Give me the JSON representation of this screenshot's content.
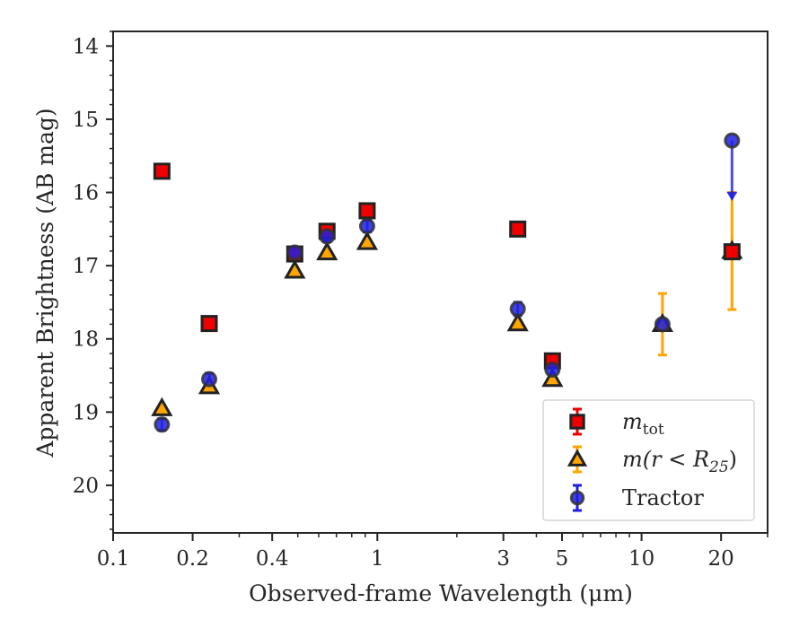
{
  "chart_data": {
    "type": "scatter",
    "title": "",
    "xlabel": "Observed-frame Wavelength (μm)",
    "ylabel": "Apparent Brightness (AB mag)",
    "xscale": "log",
    "xlim": [
      0.1,
      30
    ],
    "ylim": [
      20.65,
      13.8
    ],
    "y_inverted": true,
    "grid": false,
    "legend_position": "lower right",
    "x_ticks": [
      {
        "value": 0.1,
        "label": "0.1"
      },
      {
        "value": 0.2,
        "label": "0.2"
      },
      {
        "value": 0.4,
        "label": "0.4"
      },
      {
        "value": 1,
        "label": "1"
      },
      {
        "value": 3,
        "label": "3"
      },
      {
        "value": 5,
        "label": "5"
      },
      {
        "value": 10,
        "label": "10"
      },
      {
        "value": 20,
        "label": "20"
      }
    ],
    "y_ticks": [
      {
        "value": 14,
        "label": "14"
      },
      {
        "value": 15,
        "label": "15"
      },
      {
        "value": 16,
        "label": "16"
      },
      {
        "value": 17,
        "label": "17"
      },
      {
        "value": 18,
        "label": "18"
      },
      {
        "value": 19,
        "label": "19"
      },
      {
        "value": 20,
        "label": "20"
      }
    ],
    "series": [
      {
        "name": "Tractor",
        "marker": "circle",
        "color": "#1f1fe0",
        "edge_color": "#333333",
        "points": [
          {
            "x": 0.153,
            "y": 19.17,
            "err": 0.08
          },
          {
            "x": 0.231,
            "y": 18.55,
            "err": 0.08
          },
          {
            "x": 0.487,
            "y": 16.82,
            "err": 0.07
          },
          {
            "x": 0.645,
            "y": 16.6,
            "err": 0.07
          },
          {
            "x": 0.915,
            "y": 16.46,
            "err": 0.08
          },
          {
            "x": 3.4,
            "y": 17.59,
            "err": 0.09
          },
          {
            "x": 4.6,
            "y": 18.42,
            "err": 0.1
          },
          {
            "x": 12.0,
            "y": 17.8,
            "err": 0.05
          },
          {
            "x": 22.0,
            "y": 15.29,
            "err_down": 0.8,
            "upper_limit": true
          }
        ]
      },
      {
        "name": "m(r < R25)",
        "marker": "triangle",
        "color": "#ffa500",
        "edge_color": "#222222",
        "points": [
          {
            "x": 0.153,
            "y": 18.95,
            "err": 0.03
          },
          {
            "x": 0.231,
            "y": 18.65,
            "err": 0.03
          },
          {
            "x": 0.487,
            "y": 17.07,
            "err": 0.03
          },
          {
            "x": 0.645,
            "y": 16.82,
            "err": 0.03
          },
          {
            "x": 0.915,
            "y": 16.68,
            "err": 0.03
          },
          {
            "x": 3.4,
            "y": 17.79,
            "err": 0.03
          },
          {
            "x": 4.6,
            "y": 18.55,
            "err": 0.04
          },
          {
            "x": 12.0,
            "y": 17.8,
            "err": 0.42
          },
          {
            "x": 22.0,
            "y": 16.8,
            "err": 0.8
          }
        ]
      },
      {
        "name": "m_tot",
        "marker": "square",
        "color": "#ee0000",
        "edge_color": "#222222",
        "points": [
          {
            "x": 0.153,
            "y": 15.71,
            "err": 0.03
          },
          {
            "x": 0.231,
            "y": 17.79,
            "err": 0.03
          },
          {
            "x": 0.487,
            "y": 16.84,
            "err": 0.05
          },
          {
            "x": 0.645,
            "y": 16.53,
            "err": 0.05
          },
          {
            "x": 0.915,
            "y": 16.25,
            "err": 0.06
          },
          {
            "x": 3.4,
            "y": 16.5,
            "err": 0.04
          },
          {
            "x": 4.6,
            "y": 18.3,
            "err": 0.05
          },
          {
            "x": 22.0,
            "y": 16.81,
            "err": 0.03
          }
        ]
      }
    ],
    "legend": {
      "entries": [
        {
          "series": "m_tot",
          "marker": "square",
          "label_main": "m",
          "label_sub": "tot"
        },
        {
          "series": "m(r < R25)",
          "marker": "triangle",
          "label_main": "m(r < R",
          "label_sub": "25",
          "label_end": ")"
        },
        {
          "series": "Tractor",
          "marker": "circle",
          "label_main": "Tractor"
        }
      ]
    }
  }
}
